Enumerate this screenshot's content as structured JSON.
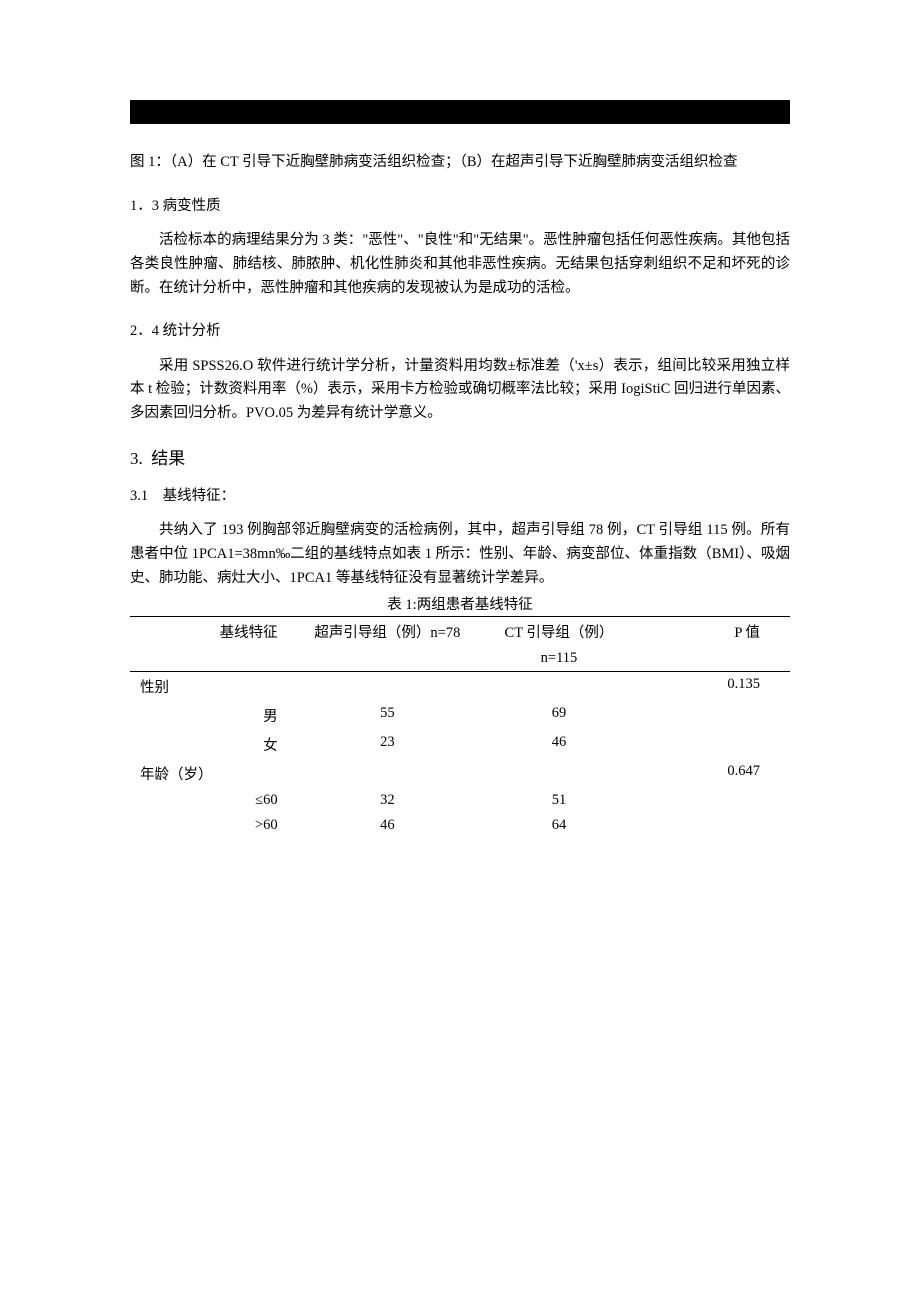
{
  "figure_caption": "图 1：（A）在 CT 引导下近胸壁肺病变活组织检查；（B）在超声引导下近胸壁肺病变活组织检查",
  "section_1_3": {
    "num": "1．3",
    "title": "病变性质",
    "body": "活检标本的病理结果分为 3 类：\"恶性\"、\"良性\"和\"无结果\"。恶性肿瘤包括任何恶性疾病。其他包括各类良性肿瘤、肺结核、肺脓肿、机化性肺炎和其他非恶性疾病。无结果包括穿刺组织不足和坏死的诊断。在统计分析中，恶性肿瘤和其他疾病的发现被认为是成功的活检。"
  },
  "section_2_4": {
    "num": "2．4",
    "title": "统计分析",
    "body": "采用 SPSS26.O 软件进行统计学分析，计量资料用均数±标准差（'x±s）表示，组间比较采用独立样本 t 检验；计数资料用率（%）表示，采用卡方检验或确切概率法比较；采用 IogiStiC 回归进行单因素、多因素回归分析。PVO.05 为差异有统计学意义。"
  },
  "section_3": {
    "num": "3.",
    "title": "结果"
  },
  "section_3_1": {
    "num": "3.1",
    "title": "基线特征：",
    "body": "共纳入了 193 例胸部邻近胸壁病变的活检病例，其中，超声引导组 78 例，CT 引导组 115 例。所有患者中位 1PCA1=38mn‰二组的基线特点如表 1 所示：性别、年龄、病变部位、体重指数（BMI）、吸烟史、肺功能、病灶大小、1PCA1 等基线特征没有显著统计学差异。"
  },
  "table": {
    "caption": "表 1:两组患者基线特征",
    "headers": {
      "feature": "基线特征",
      "us_group": "超声引导组（例）n=78",
      "ct_group_l1": "CT 引导组（例）",
      "ct_group_l2": "n=115",
      "p_value": "P 值"
    },
    "rows": [
      {
        "label": "性别",
        "indent": false,
        "us": "",
        "ct": "",
        "p": "0.135"
      },
      {
        "label": "男",
        "indent": true,
        "us": "55",
        "ct": "69",
        "p": ""
      },
      {
        "label": "女",
        "indent": true,
        "us": "23",
        "ct": "46",
        "p": ""
      },
      {
        "label": "年龄（岁）",
        "indent": false,
        "us": "",
        "ct": "",
        "p": "0.647"
      },
      {
        "label": "≤60",
        "indent": true,
        "us": "32",
        "ct": "51",
        "p": ""
      },
      {
        "label": ">60",
        "indent": true,
        "us": "46",
        "ct": "64",
        "p": ""
      }
    ]
  }
}
